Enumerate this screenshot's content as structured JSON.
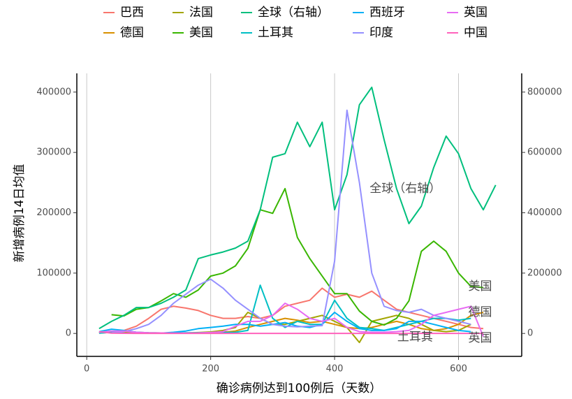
{
  "chart_data": {
    "type": "line",
    "x_label": "确诊病例达到100例后（天数）",
    "y_label": "新增病例14日均值",
    "x": [
      20,
      40,
      60,
      80,
      100,
      120,
      140,
      160,
      180,
      200,
      220,
      240,
      260,
      280,
      300,
      320,
      340,
      360,
      380,
      400,
      420,
      440,
      460,
      480,
      500,
      520,
      540,
      560,
      580,
      600,
      620,
      640,
      660,
      680
    ],
    "xlim": [
      -16,
      702
    ],
    "xticks": [
      0,
      200,
      400,
      600
    ],
    "ylim": [
      -38000,
      431000
    ],
    "yticks": [
      0,
      100000,
      200000,
      300000,
      400000
    ],
    "y2lim": [
      -76000,
      862000
    ],
    "y2ticks": [
      0,
      200000,
      400000,
      600000,
      800000
    ],
    "xgrid": true,
    "series": [
      {
        "name": "巴西",
        "color": "#F8766D",
        "values": [
          500,
          2000,
          5000,
          12000,
          25000,
          40000,
          45000,
          42000,
          38000,
          30000,
          25000,
          25000,
          28000,
          25000,
          30000,
          45000,
          50000,
          55000,
          75000,
          60000,
          65000,
          60000,
          70000,
          55000,
          40000,
          35000,
          30000,
          25000,
          20000,
          15000,
          10000,
          8000,
          null,
          null
        ]
      },
      {
        "name": "德国",
        "color": "#D89000",
        "values": [
          1000,
          3000,
          4000,
          2000,
          1000,
          800,
          600,
          500,
          600,
          1000,
          2000,
          4000,
          10000,
          15000,
          20000,
          25000,
          22000,
          18000,
          20000,
          15000,
          10000,
          8000,
          10000,
          15000,
          20000,
          15000,
          8000,
          5000,
          8000,
          15000,
          30000,
          35000,
          null,
          null
        ]
      },
      {
        "name": "法国",
        "color": "#A3A500",
        "values": [
          1000,
          3000,
          2000,
          500,
          300,
          400,
          500,
          800,
          1500,
          2500,
          5000,
          10000,
          35000,
          25000,
          15000,
          15000,
          20000,
          25000,
          30000,
          20000,
          10000,
          -15000,
          20000,
          25000,
          30000,
          25000,
          15000,
          5000,
          3000,
          5000,
          15000,
          null,
          null,
          null
        ]
      },
      {
        "name": "美国",
        "color": "#39B600",
        "values": [
          null,
          31000,
          29000,
          40000,
          43000,
          54000,
          66000,
          60000,
          72000,
          95000,
          100000,
          112000,
          141000,
          205000,
          199000,
          240000,
          159000,
          124000,
          95000,
          66000,
          66000,
          37000,
          20000,
          14000,
          25000,
          54000,
          136000,
          153000,
          136000,
          100000,
          78000,
          76000,
          null,
          null
        ]
      },
      {
        "name": "全球（右轴）",
        "color": "#00BF7D",
        "axis": "y2",
        "values": [
          16000,
          40000,
          60000,
          86000,
          86000,
          100000,
          120000,
          144000,
          248000,
          260000,
          270000,
          283000,
          306000,
          410000,
          584000,
          596000,
          700000,
          619000,
          700000,
          410000,
          526000,
          758000,
          816000,
          642000,
          480000,
          364000,
          422000,
          550000,
          654000,
          596000,
          480000,
          410000,
          492000,
          null
        ]
      },
      {
        "name": "土耳其",
        "color": "#00BFC4",
        "values": [
          500,
          2000,
          4000,
          2000,
          1000,
          800,
          800,
          1000,
          1000,
          1500,
          1500,
          2000,
          5000,
          80000,
          25000,
          10000,
          20000,
          15000,
          15000,
          55000,
          25000,
          10000,
          8000,
          5000,
          10000,
          15000,
          20000,
          25000,
          25000,
          22000,
          25000,
          null,
          null,
          null
        ]
      },
      {
        "name": "西班牙",
        "color": "#00B0F6",
        "values": [
          3000,
          7000,
          5000,
          2000,
          500,
          500,
          2000,
          4000,
          8000,
          10000,
          12000,
          15000,
          15000,
          12000,
          15000,
          18000,
          12000,
          10000,
          15000,
          35000,
          20000,
          8000,
          5000,
          5000,
          8000,
          20000,
          20000,
          15000,
          10000,
          5000,
          3000,
          null,
          null,
          null
        ]
      },
      {
        "name": "印度",
        "color": "#9590FF",
        "values": [
          null,
          1000,
          3000,
          8000,
          15000,
          30000,
          50000,
          65000,
          80000,
          90000,
          75000,
          55000,
          40000,
          25000,
          15000,
          12000,
          11000,
          12000,
          13000,
          120000,
          370000,
          250000,
          100000,
          45000,
          38000,
          35000,
          40000,
          30000,
          25000,
          20000,
          15000,
          null,
          null,
          null
        ]
      },
      {
        "name": "英国",
        "color": "#E76BF3",
        "values": [
          2000,
          4000,
          4000,
          2000,
          1000,
          800,
          600,
          600,
          800,
          1500,
          3000,
          12000,
          20000,
          20000,
          30000,
          50000,
          40000,
          25000,
          20000,
          25000,
          10000,
          3000,
          2000,
          2000,
          3000,
          5000,
          15000,
          30000,
          35000,
          40000,
          45000,
          -5000,
          null,
          null
        ]
      },
      {
        "name": "中国",
        "color": "#FF62BC",
        "values": [
          3000,
          500,
          200,
          100,
          100,
          100,
          100,
          100,
          100,
          100,
          100,
          100,
          100,
          100,
          100,
          100,
          100,
          100,
          100,
          100,
          100,
          100,
          100,
          100,
          100,
          100,
          100,
          100,
          100,
          100,
          100,
          100,
          null,
          null
        ]
      }
    ],
    "annotations": [
      {
        "text": "全球（右轴）",
        "x": 514,
        "y": 240000,
        "color": "#00BF7D"
      },
      {
        "text": "美国",
        "x": 635,
        "y": 78000,
        "color": "#39B600"
      },
      {
        "text": "德国",
        "x": 635,
        "y": 35000,
        "color": "#D89000"
      },
      {
        "text": "土耳其",
        "x": 530,
        "y": -6000,
        "color": "#00BFC4"
      },
      {
        "text": "英国",
        "x": 635,
        "y": -8000,
        "color": "#E76BF3"
      }
    ]
  }
}
